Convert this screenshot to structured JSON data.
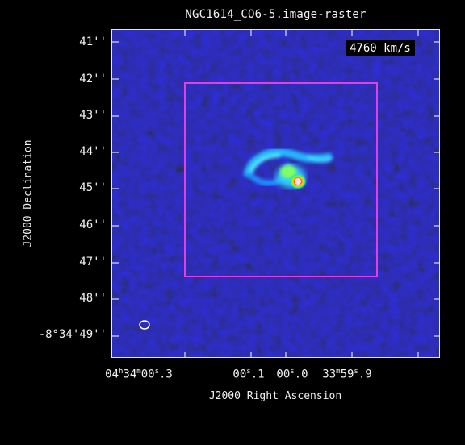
{
  "title": "NGC1614_CO6-5.image-raster",
  "velocity_label": "4760 km/s",
  "axes": {
    "y_title": "J2000 Declination",
    "x_title": "J2000 Right Ascension",
    "y_ticks": [
      "41''",
      "42''",
      "43''",
      "44''",
      "45''",
      "46''",
      "47''",
      "48''",
      "-8°34'49''"
    ],
    "x_ticks": [
      {
        "h": "04",
        "m": "34",
        "s": "00",
        "f": "3",
        "text": "04h34m00s.3"
      },
      {
        "text": "00s.1"
      },
      {
        "text": "00s.0"
      },
      {
        "text": "33m59s.9"
      }
    ]
  },
  "colors": {
    "background": "#000000",
    "map_base": "#1414a0",
    "region_box": "#e040e0",
    "frame": "#e8e8e8",
    "beam": "#ffffff"
  },
  "icons": {
    "beam": "ellipse-outline"
  }
}
